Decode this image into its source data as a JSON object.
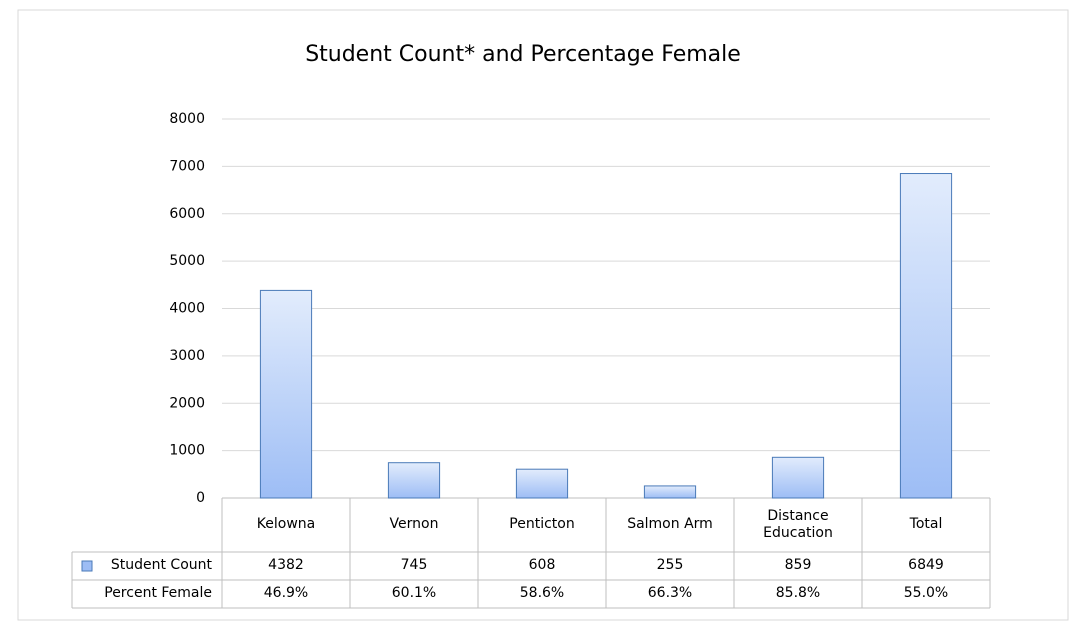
{
  "chart_data": {
    "type": "bar",
    "title": "Student Count* and Percentage Female",
    "categories": [
      "Kelowna",
      "Vernon",
      "Penticton",
      "Salmon Arm",
      "Distance Education",
      "Total"
    ],
    "series": [
      {
        "name": "Student Count",
        "color": "#9dbdf5",
        "values": [
          4382,
          745,
          608,
          255,
          859,
          6849
        ]
      }
    ],
    "percent_female": {
      "name": "Percent Female",
      "labels": [
        "46.9%",
        "60.1%",
        "58.6%",
        "66.3%",
        "85.8%",
        "55.0%"
      ]
    },
    "ylim": [
      0,
      8000
    ],
    "yticks": [
      0,
      1000,
      2000,
      3000,
      4000,
      5000,
      6000,
      7000,
      8000
    ],
    "grid": true
  }
}
